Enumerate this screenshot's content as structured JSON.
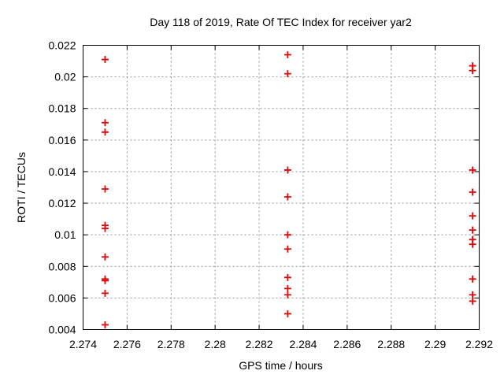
{
  "chart_data": {
    "type": "scatter",
    "title": "Day 118 of 2019, Rate Of TEC Index for receiver yar2",
    "xlabel": "GPS time / hours",
    "ylabel": "ROTI / TECUs",
    "xlim": [
      2.274,
      2.292
    ],
    "ylim": [
      0.004,
      0.022
    ],
    "x_ticks": [
      "2.274",
      "2.276",
      "2.278",
      "2.28",
      "2.282",
      "2.284",
      "2.286",
      "2.288",
      "2.29",
      "2.292"
    ],
    "y_ticks": [
      "0.004",
      "0.006",
      "0.008",
      "0.01",
      "0.012",
      "0.014",
      "0.016",
      "0.018",
      "0.02",
      "0.022"
    ],
    "grid": true,
    "legend": "none",
    "marker": "plus",
    "colors": {
      "marker": "#ee0000",
      "grid": "#909090",
      "frame": "#000000",
      "text": "#000000"
    },
    "points": [
      [
        2.275,
        0.0211
      ],
      [
        2.275,
        0.0171
      ],
      [
        2.275,
        0.0165
      ],
      [
        2.275,
        0.0129
      ],
      [
        2.275,
        0.0106
      ],
      [
        2.275,
        0.0104
      ],
      [
        2.275,
        0.0086
      ],
      [
        2.275,
        0.0072
      ],
      [
        2.275,
        0.0071
      ],
      [
        2.275,
        0.0063
      ],
      [
        2.275,
        0.0043
      ],
      [
        2.2833,
        0.0214
      ],
      [
        2.2833,
        0.0202
      ],
      [
        2.2833,
        0.0141
      ],
      [
        2.2833,
        0.0124
      ],
      [
        2.2833,
        0.01
      ],
      [
        2.2833,
        0.0091
      ],
      [
        2.2833,
        0.0073
      ],
      [
        2.2833,
        0.0066
      ],
      [
        2.2833,
        0.0062
      ],
      [
        2.2833,
        0.005
      ],
      [
        2.2917,
        0.0207
      ],
      [
        2.2917,
        0.0204
      ],
      [
        2.2917,
        0.0141
      ],
      [
        2.2917,
        0.0127
      ],
      [
        2.2917,
        0.0112
      ],
      [
        2.2917,
        0.0103
      ],
      [
        2.2917,
        0.0097
      ],
      [
        2.2917,
        0.0094
      ],
      [
        2.2917,
        0.0072
      ],
      [
        2.2917,
        0.0062
      ],
      [
        2.2917,
        0.0058
      ]
    ]
  }
}
